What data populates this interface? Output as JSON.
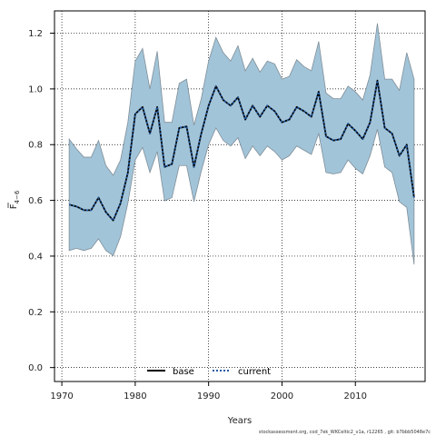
{
  "chart_data": {
    "type": "area",
    "xlabel": "Years",
    "ylabel_main": "F",
    "ylabel_sub": "4−6",
    "xlim": [
      1969,
      2019.5
    ],
    "ylim": [
      -0.05,
      1.28
    ],
    "xticks": [
      1970,
      1980,
      1990,
      2000,
      2010
    ],
    "yticks": [
      0.0,
      0.2,
      0.4,
      0.6,
      0.8,
      1.0,
      1.2
    ],
    "ytick_labels": [
      "0.0",
      "0.2",
      "0.4",
      "0.6",
      "0.8",
      "1.0",
      "1.2"
    ],
    "grid": true,
    "legend_position": "bottom-center",
    "x": [
      1971,
      1972,
      1973,
      1974,
      1975,
      1976,
      1977,
      1978,
      1979,
      1980,
      1981,
      1982,
      1983,
      1984,
      1985,
      1986,
      1987,
      1988,
      1989,
      1990,
      1991,
      1992,
      1993,
      1994,
      1995,
      1996,
      1997,
      1998,
      1999,
      2000,
      2001,
      2002,
      2003,
      2004,
      2005,
      2006,
      2007,
      2008,
      2009,
      2010,
      2011,
      2012,
      2013,
      2014,
      2015,
      2016,
      2017,
      2018
    ],
    "series": [
      {
        "name": "base",
        "line": "solid",
        "color": "#000000",
        "values": [
          0.585,
          0.578,
          0.565,
          0.565,
          0.61,
          0.558,
          0.528,
          0.59,
          0.7,
          0.91,
          0.935,
          0.84,
          0.935,
          0.72,
          0.73,
          0.86,
          0.865,
          0.72,
          0.84,
          0.94,
          1.01,
          0.96,
          0.94,
          0.97,
          0.89,
          0.94,
          0.9,
          0.94,
          0.92,
          0.88,
          0.89,
          0.935,
          0.92,
          0.9,
          0.99,
          0.83,
          0.815,
          0.82,
          0.875,
          0.85,
          0.82,
          0.88,
          1.03,
          0.86,
          0.84,
          0.76,
          0.8,
          0.61
        ]
      },
      {
        "name": "current",
        "line": "dotted",
        "color": "#1f5aa6",
        "values": [
          0.585,
          0.578,
          0.565,
          0.565,
          0.61,
          0.558,
          0.528,
          0.59,
          0.7,
          0.91,
          0.935,
          0.84,
          0.935,
          0.72,
          0.73,
          0.86,
          0.865,
          0.72,
          0.84,
          0.94,
          1.01,
          0.96,
          0.94,
          0.97,
          0.89,
          0.94,
          0.9,
          0.94,
          0.92,
          0.88,
          0.89,
          0.935,
          0.92,
          0.9,
          0.99,
          0.83,
          0.815,
          0.82,
          0.875,
          0.85,
          0.82,
          0.88,
          1.03,
          0.86,
          0.84,
          0.76,
          0.8,
          0.61
        ]
      }
    ],
    "band": {
      "color": "#a2c4d8",
      "edge_color": "#7f8e99",
      "upper": [
        0.82,
        0.785,
        0.755,
        0.755,
        0.815,
        0.725,
        0.69,
        0.745,
        0.88,
        1.1,
        1.145,
        1.0,
        1.135,
        0.88,
        0.88,
        1.02,
        1.035,
        0.87,
        0.965,
        1.1,
        1.185,
        1.13,
        1.1,
        1.155,
        1.065,
        1.11,
        1.06,
        1.1,
        1.09,
        1.035,
        1.045,
        1.105,
        1.08,
        1.065,
        1.17,
        0.985,
        0.965,
        0.965,
        1.01,
        0.99,
        0.96,
        1.05,
        1.235,
        1.035,
        1.035,
        0.995,
        1.13,
        1.035
      ],
      "lower": [
        0.42,
        0.428,
        0.42,
        0.428,
        0.462,
        0.42,
        0.402,
        0.47,
        0.59,
        0.745,
        0.79,
        0.7,
        0.775,
        0.598,
        0.61,
        0.725,
        0.725,
        0.595,
        0.705,
        0.8,
        0.86,
        0.815,
        0.795,
        0.825,
        0.75,
        0.795,
        0.76,
        0.795,
        0.775,
        0.745,
        0.76,
        0.795,
        0.78,
        0.765,
        0.84,
        0.7,
        0.695,
        0.7,
        0.745,
        0.715,
        0.695,
        0.76,
        0.855,
        0.72,
        0.7,
        0.595,
        0.575,
        0.37
      ]
    }
  },
  "legend": {
    "base_label": "base",
    "current_label": "current"
  },
  "footer_text": "stockassessment.org, cod_7ek_WKCeltic2_v1a, r12265 , git: b7bbb5048e7c"
}
